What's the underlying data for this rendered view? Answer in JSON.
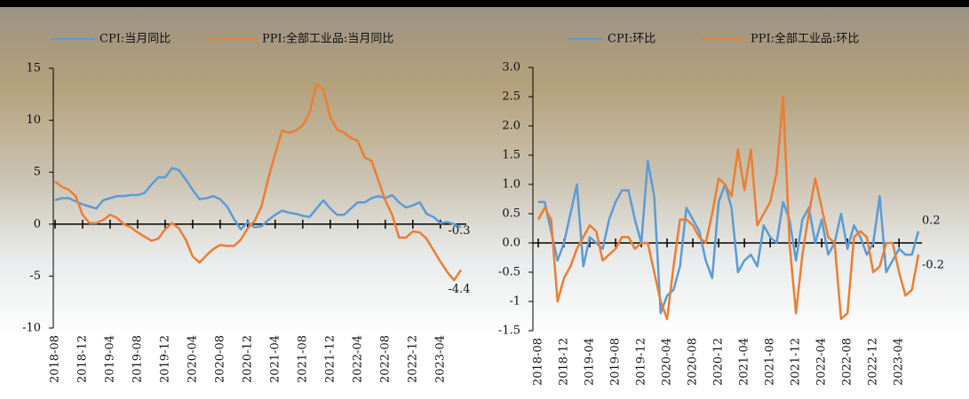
{
  "chart_data": [
    {
      "type": "line",
      "categories": [
        "2018-08",
        null,
        null,
        null,
        "2018-12",
        null,
        null,
        null,
        "2019-04",
        null,
        null,
        null,
        "2019-08",
        null,
        null,
        null,
        "2019-12",
        null,
        null,
        null,
        "2020-04",
        null,
        null,
        null,
        "2020-08",
        null,
        null,
        null,
        "2020-12",
        null,
        null,
        null,
        "2021-04",
        null,
        null,
        null,
        "2021-08",
        null,
        null,
        null,
        "2021-12",
        null,
        null,
        null,
        "2022-04",
        null,
        null,
        null,
        "2022-08",
        null,
        null,
        null,
        "2022-12",
        null,
        null,
        null,
        "2023-04",
        null,
        null,
        null
      ],
      "series": [
        {
          "name": "CPI:当月同比",
          "color": "#5b9bd5",
          "values": [
            2.3,
            2.5,
            2.5,
            2.2,
            1.9,
            1.7,
            1.5,
            2.3,
            2.5,
            2.7,
            2.7,
            2.8,
            2.8,
            3.0,
            3.8,
            4.5,
            4.5,
            5.4,
            5.2,
            4.3,
            3.3,
            2.4,
            2.5,
            2.7,
            2.4,
            1.7,
            0.5,
            -0.5,
            0.2,
            -0.3,
            -0.2,
            0.4,
            0.9,
            1.3,
            1.1,
            1.0,
            0.8,
            0.7,
            1.5,
            2.3,
            1.5,
            0.9,
            0.9,
            1.5,
            2.1,
            2.1,
            2.5,
            2.7,
            2.5,
            2.8,
            2.1,
            1.6,
            1.8,
            2.1,
            1.0,
            0.7,
            0.1,
            0.2,
            0.0,
            -0.3
          ]
        },
        {
          "name": "PPI:全部工业品:当月同比",
          "color": "#ed7d31",
          "values": [
            4.1,
            3.6,
            3.3,
            2.7,
            0.9,
            0.1,
            0.1,
            0.4,
            0.9,
            0.6,
            0.0,
            -0.3,
            -0.8,
            -1.2,
            -1.6,
            -1.4,
            -0.5,
            0.1,
            -0.4,
            -1.5,
            -3.1,
            -3.7,
            -3.0,
            -2.4,
            -2.0,
            -2.1,
            -2.1,
            -1.5,
            -0.4,
            0.3,
            1.7,
            4.4,
            6.8,
            9.0,
            8.8,
            9.0,
            9.5,
            10.7,
            13.5,
            12.9,
            10.3,
            9.1,
            8.8,
            8.3,
            8.0,
            6.4,
            6.1,
            4.2,
            2.3,
            0.9,
            -1.3,
            -1.3,
            -0.7,
            -0.8,
            -1.4,
            -2.5,
            -3.6,
            -4.6,
            -5.4,
            -4.4
          ]
        }
      ],
      "ylim": [
        -10,
        15
      ],
      "yticks": [
        -10,
        -5,
        0,
        5,
        10,
        15
      ]
    },
    {
      "type": "line",
      "categories": [
        "2018-08",
        null,
        null,
        null,
        "2018-12",
        null,
        null,
        null,
        "2019-04",
        null,
        null,
        null,
        "2019-08",
        null,
        null,
        null,
        "2019-12",
        null,
        null,
        null,
        "2020-04",
        null,
        null,
        null,
        "2020-08",
        null,
        null,
        null,
        "2020-12",
        null,
        null,
        null,
        "2021-04",
        null,
        null,
        null,
        "2021-08",
        null,
        null,
        null,
        "2021-12",
        null,
        null,
        null,
        "2022-04",
        null,
        null,
        null,
        "2022-08",
        null,
        null,
        null,
        "2022-12",
        null,
        null,
        null,
        "2023-04",
        null,
        null,
        null
      ],
      "series": [
        {
          "name": "CPI:环比",
          "color": "#5b9bd5",
          "values": [
            0.7,
            0.7,
            0.2,
            -0.3,
            0.0,
            0.5,
            1.0,
            -0.4,
            0.1,
            0.0,
            -0.1,
            0.4,
            0.7,
            0.9,
            0.9,
            0.4,
            0.0,
            1.4,
            0.8,
            -1.2,
            -0.9,
            -0.8,
            -0.4,
            0.6,
            0.4,
            0.2,
            -0.3,
            -0.6,
            0.7,
            1.0,
            0.6,
            -0.5,
            -0.3,
            -0.2,
            -0.4,
            0.3,
            0.1,
            0.0,
            0.7,
            0.4,
            -0.3,
            0.4,
            0.6,
            0.0,
            0.4,
            -0.2,
            0.0,
            0.5,
            -0.1,
            0.3,
            0.1,
            -0.2,
            0.0,
            0.8,
            -0.5,
            -0.3,
            -0.1,
            -0.2,
            -0.2,
            0.2
          ]
        },
        {
          "name": "PPI:全部工业品:环比",
          "color": "#ed7d31",
          "values": [
            0.4,
            0.6,
            0.4,
            -1.0,
            -0.6,
            -0.4,
            -0.1,
            0.1,
            0.3,
            0.2,
            -0.3,
            -0.2,
            -0.1,
            0.1,
            0.1,
            -0.1,
            0.0,
            0.0,
            -0.5,
            -1.0,
            -1.3,
            -0.4,
            0.4,
            0.4,
            0.3,
            0.1,
            0.0,
            0.5,
            1.1,
            1.0,
            0.8,
            1.6,
            0.9,
            1.6,
            0.3,
            0.5,
            0.7,
            1.2,
            2.5,
            0.0,
            -1.2,
            -0.2,
            0.5,
            1.1,
            0.6,
            0.1,
            0.0,
            -1.3,
            -1.2,
            0.1,
            0.2,
            0.1,
            -0.5,
            -0.4,
            0.0,
            0.0,
            -0.5,
            -0.9,
            -0.8,
            -0.2
          ]
        }
      ],
      "ylim": [
        -1.5,
        3.0
      ],
      "yticks": [
        -1.5,
        -1.0,
        -0.5,
        {
          "value": 0,
          "label": "0.0"
        },
        0.5,
        {
          "value": 1,
          "label": "1.0"
        },
        1.5,
        {
          "value": 2,
          "label": "2.0"
        },
        2.5,
        {
          "value": 3,
          "label": "3.0"
        }
      ]
    }
  ]
}
